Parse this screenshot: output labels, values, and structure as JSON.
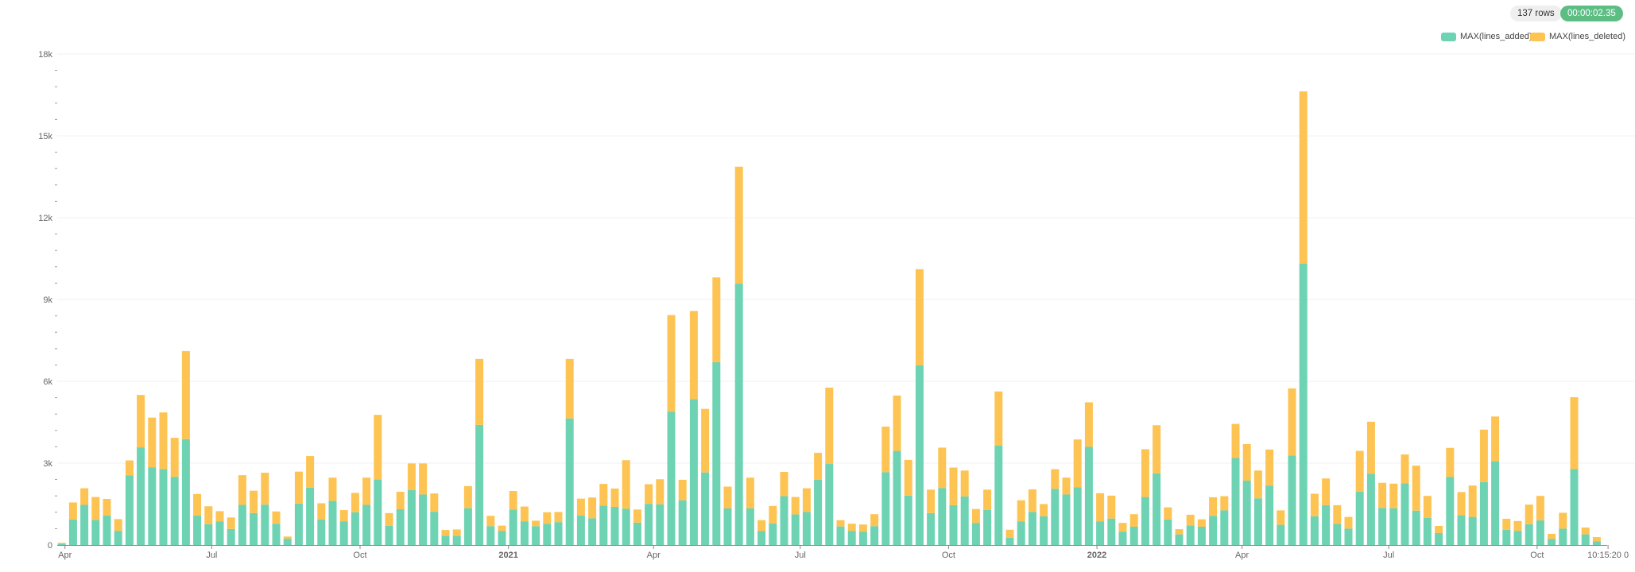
{
  "header": {
    "row_count": "137 rows",
    "elapsed": "00:00:02.35"
  },
  "legend": [
    {
      "label": "MAX(lines_added)",
      "color": "#6dd3b3"
    },
    {
      "label": "MAX(lines_deleted)",
      "color": "#fdc453"
    }
  ],
  "chart_data": {
    "type": "bar",
    "stacked": true,
    "grid": true,
    "legend_position": "top-right",
    "ylim": [
      0,
      18000
    ],
    "y_ticks": [
      {
        "v": 0,
        "label": "0"
      },
      {
        "v": 3000,
        "label": "3k"
      },
      {
        "v": 6000,
        "label": "6k"
      },
      {
        "v": 9000,
        "label": "9k"
      },
      {
        "v": 12000,
        "label": "12k"
      },
      {
        "v": 15000,
        "label": "15k"
      },
      {
        "v": 18000,
        "label": "18k"
      }
    ],
    "x_ticks": [
      {
        "date": "2020-04-01",
        "label": "Apr"
      },
      {
        "date": "2020-07-01",
        "label": "Jul"
      },
      {
        "date": "2020-10-01",
        "label": "Oct"
      },
      {
        "date": "2021-01-01",
        "label": "2021",
        "bold": true
      },
      {
        "date": "2021-04-01",
        "label": "Apr"
      },
      {
        "date": "2021-07-01",
        "label": "Jul"
      },
      {
        "date": "2021-10-01",
        "label": "Oct"
      },
      {
        "date": "2022-01-01",
        "label": "2022",
        "bold": true
      },
      {
        "date": "2022-04-01",
        "label": "Apr"
      },
      {
        "date": "2022-07-01",
        "label": "Jul"
      },
      {
        "date": "2022-10-01",
        "label": "Oct"
      },
      {
        "date": "2022-11-14",
        "label": "10:15:20 0"
      }
    ],
    "x": [
      "2020-03-30",
      "2020-04-06",
      "2020-04-13",
      "2020-04-20",
      "2020-04-27",
      "2020-05-04",
      "2020-05-11",
      "2020-05-18",
      "2020-05-25",
      "2020-06-01",
      "2020-06-08",
      "2020-06-15",
      "2020-06-22",
      "2020-06-29",
      "2020-07-06",
      "2020-07-13",
      "2020-07-20",
      "2020-07-27",
      "2020-08-03",
      "2020-08-10",
      "2020-08-17",
      "2020-08-24",
      "2020-08-31",
      "2020-09-07",
      "2020-09-14",
      "2020-09-21",
      "2020-09-28",
      "2020-10-05",
      "2020-10-12",
      "2020-10-19",
      "2020-10-26",
      "2020-11-02",
      "2020-11-09",
      "2020-11-16",
      "2020-11-23",
      "2020-11-30",
      "2020-12-07",
      "2020-12-14",
      "2020-12-21",
      "2020-12-28",
      "2021-01-04",
      "2021-01-11",
      "2021-01-18",
      "2021-01-25",
      "2021-02-01",
      "2021-02-08",
      "2021-02-15",
      "2021-02-22",
      "2021-03-01",
      "2021-03-08",
      "2021-03-15",
      "2021-03-22",
      "2021-03-29",
      "2021-04-05",
      "2021-04-12",
      "2021-04-19",
      "2021-04-26",
      "2021-05-03",
      "2021-05-10",
      "2021-05-17",
      "2021-05-24",
      "2021-05-31",
      "2021-06-07",
      "2021-06-14",
      "2021-06-21",
      "2021-06-28",
      "2021-07-05",
      "2021-07-12",
      "2021-07-19",
      "2021-07-26",
      "2021-08-02",
      "2021-08-09",
      "2021-08-16",
      "2021-08-23",
      "2021-08-30",
      "2021-09-06",
      "2021-09-13",
      "2021-09-20",
      "2021-09-27",
      "2021-10-04",
      "2021-10-11",
      "2021-10-18",
      "2021-10-25",
      "2021-11-01",
      "2021-11-08",
      "2021-11-15",
      "2021-11-22",
      "2021-11-29",
      "2021-12-06",
      "2021-12-13",
      "2021-12-20",
      "2021-12-27",
      "2022-01-03",
      "2022-01-10",
      "2022-01-17",
      "2022-01-24",
      "2022-01-31",
      "2022-02-07",
      "2022-02-14",
      "2022-02-21",
      "2022-02-28",
      "2022-03-07",
      "2022-03-14",
      "2022-03-21",
      "2022-03-28",
      "2022-04-04",
      "2022-04-11",
      "2022-04-18",
      "2022-04-25",
      "2022-05-02",
      "2022-05-09",
      "2022-05-16",
      "2022-05-23",
      "2022-05-30",
      "2022-06-06",
      "2022-06-13",
      "2022-06-20",
      "2022-06-27",
      "2022-07-04",
      "2022-07-11",
      "2022-07-18",
      "2022-07-25",
      "2022-08-01",
      "2022-08-08",
      "2022-08-15",
      "2022-08-22",
      "2022-08-29",
      "2022-09-05",
      "2022-09-12",
      "2022-09-19",
      "2022-09-26",
      "2022-10-03",
      "2022-10-10",
      "2022-10-17",
      "2022-10-24",
      "2022-10-31",
      "2022-11-07"
    ],
    "series": [
      {
        "name": "MAX(lines_added)",
        "color": "#6dd3b3",
        "values": [
          50,
          930,
          1470,
          920,
          1080,
          520,
          2550,
          3580,
          2850,
          2780,
          2500,
          3880,
          1080,
          760,
          870,
          590,
          1470,
          1170,
          1480,
          780,
          230,
          1520,
          2100,
          930,
          1620,
          870,
          1200,
          1470,
          2400,
          700,
          1310,
          2020,
          1850,
          1220,
          340,
          340,
          1350,
          4400,
          690,
          510,
          1300,
          870,
          690,
          780,
          840,
          4640,
          1080,
          980,
          1450,
          1400,
          1330,
          820,
          1510,
          1490,
          4890,
          1640,
          5350,
          2660,
          6700,
          1340,
          9580,
          1340,
          510,
          790,
          1790,
          1120,
          1210,
          2390,
          2970,
          680,
          520,
          490,
          690,
          2670,
          3450,
          1810,
          6590,
          1170,
          2090,
          1460,
          1780,
          810,
          1290,
          3640,
          270,
          860,
          1210,
          1050,
          2060,
          1850,
          2120,
          3600,
          870,
          970,
          490,
          670,
          1760,
          2630,
          930,
          390,
          720,
          670,
          1070,
          1270,
          3190,
          2360,
          1710,
          2180,
          740,
          3280,
          10310,
          1050,
          1460,
          770,
          600,
          1950,
          2610,
          1360,
          1350,
          2260,
          1260,
          1000,
          440,
          2500,
          1090,
          1030,
          2310,
          3070,
          560,
          520,
          760,
          900,
          220,
          600,
          2780,
          390,
          140
        ]
      },
      {
        "name": "MAX(lines_deleted)",
        "color": "#fdc453",
        "values": [
          30,
          630,
          610,
          840,
          610,
          430,
          550,
          1920,
          1820,
          2080,
          1430,
          3230,
          790,
          660,
          370,
          420,
          1090,
          820,
          1170,
          450,
          80,
          1170,
          1160,
          600,
          850,
          410,
          710,
          1000,
          2370,
          470,
          640,
          970,
          1140,
          670,
          210,
          230,
          810,
          2420,
          380,
          200,
          680,
          540,
          200,
          420,
          370,
          2180,
          620,
          760,
          790,
          670,
          1780,
          480,
          720,
          920,
          3540,
          750,
          3230,
          2330,
          3110,
          800,
          4290,
          1130,
          400,
          640,
          890,
          640,
          870,
          990,
          2800,
          230,
          260,
          260,
          440,
          1670,
          2030,
          1310,
          3520,
          860,
          1480,
          1380,
          950,
          510,
          740,
          1990,
          290,
          780,
          830,
          450,
          720,
          620,
          1750,
          1630,
          1030,
          840,
          320,
          460,
          1750,
          1760,
          450,
          190,
          390,
          270,
          680,
          520,
          1250,
          1340,
          1020,
          1320,
          530,
          2460,
          6320,
          830,
          980,
          690,
          430,
          1500,
          1910,
          920,
          900,
          1060,
          1650,
          800,
          260,
          1060,
          850,
          1150,
          1920,
          1640,
          400,
          360,
          720,
          900,
          190,
          580,
          2640,
          250,
          150
        ]
      }
    ]
  }
}
